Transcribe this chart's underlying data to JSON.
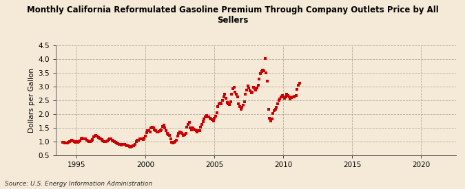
{
  "title": "Monthly California Reformulated Gasoline Premium Through Company Outlets Price by All\nSellers",
  "ylabel": "Dollars per Gallon",
  "source": "Source: U.S. Energy Information Administration",
  "background_color": "#f5ead8",
  "plot_bg_color": "#f5ead8",
  "marker_color": "#cc0000",
  "xlim": [
    1993.5,
    2022.5
  ],
  "ylim": [
    0.5,
    4.5
  ],
  "xticks": [
    1995,
    2000,
    2005,
    2010,
    2015,
    2020
  ],
  "yticks": [
    0.5,
    1.0,
    1.5,
    2.0,
    2.5,
    3.0,
    3.5,
    4.0,
    4.5
  ],
  "data": [
    [
      1994.0,
      0.97
    ],
    [
      1994.083,
      0.96
    ],
    [
      1994.167,
      0.94
    ],
    [
      1994.25,
      0.93
    ],
    [
      1994.333,
      0.95
    ],
    [
      1994.417,
      0.97
    ],
    [
      1994.5,
      1.0
    ],
    [
      1994.583,
      1.02
    ],
    [
      1994.667,
      1.03
    ],
    [
      1994.75,
      1.01
    ],
    [
      1994.833,
      0.99
    ],
    [
      1994.917,
      0.97
    ],
    [
      1995.0,
      0.98
    ],
    [
      1995.083,
      0.97
    ],
    [
      1995.167,
      0.99
    ],
    [
      1995.25,
      1.02
    ],
    [
      1995.333,
      1.08
    ],
    [
      1995.417,
      1.12
    ],
    [
      1995.5,
      1.1
    ],
    [
      1995.583,
      1.09
    ],
    [
      1995.667,
      1.08
    ],
    [
      1995.75,
      1.05
    ],
    [
      1995.833,
      1.02
    ],
    [
      1995.917,
      1.0
    ],
    [
      1996.0,
      1.0
    ],
    [
      1996.083,
      1.01
    ],
    [
      1996.167,
      1.06
    ],
    [
      1996.25,
      1.16
    ],
    [
      1996.333,
      1.19
    ],
    [
      1996.417,
      1.21
    ],
    [
      1996.5,
      1.18
    ],
    [
      1996.583,
      1.14
    ],
    [
      1996.667,
      1.11
    ],
    [
      1996.75,
      1.08
    ],
    [
      1996.833,
      1.06
    ],
    [
      1996.917,
      1.02
    ],
    [
      1997.0,
      0.99
    ],
    [
      1997.083,
      0.98
    ],
    [
      1997.167,
      0.98
    ],
    [
      1997.25,
      1.01
    ],
    [
      1997.333,
      1.06
    ],
    [
      1997.417,
      1.09
    ],
    [
      1997.5,
      1.08
    ],
    [
      1997.583,
      1.05
    ],
    [
      1997.667,
      1.02
    ],
    [
      1997.75,
      1.0
    ],
    [
      1997.833,
      0.97
    ],
    [
      1997.917,
      0.94
    ],
    [
      1998.0,
      0.92
    ],
    [
      1998.083,
      0.9
    ],
    [
      1998.167,
      0.88
    ],
    [
      1998.25,
      0.87
    ],
    [
      1998.333,
      0.9
    ],
    [
      1998.417,
      0.89
    ],
    [
      1998.5,
      0.88
    ],
    [
      1998.583,
      0.87
    ],
    [
      1998.667,
      0.85
    ],
    [
      1998.75,
      0.83
    ],
    [
      1998.833,
      0.82
    ],
    [
      1998.917,
      0.8
    ],
    [
      1999.0,
      0.82
    ],
    [
      1999.083,
      0.84
    ],
    [
      1999.167,
      0.85
    ],
    [
      1999.25,
      0.9
    ],
    [
      1999.333,
      0.98
    ],
    [
      1999.417,
      1.04
    ],
    [
      1999.5,
      1.05
    ],
    [
      1999.583,
      1.08
    ],
    [
      1999.667,
      1.1
    ],
    [
      1999.75,
      1.09
    ],
    [
      1999.833,
      1.06
    ],
    [
      1999.917,
      1.12
    ],
    [
      2000.0,
      1.18
    ],
    [
      2000.083,
      1.32
    ],
    [
      2000.167,
      1.4
    ],
    [
      2000.25,
      1.38
    ],
    [
      2000.333,
      1.35
    ],
    [
      2000.417,
      1.5
    ],
    [
      2000.5,
      1.52
    ],
    [
      2000.583,
      1.48
    ],
    [
      2000.667,
      1.42
    ],
    [
      2000.75,
      1.38
    ],
    [
      2000.833,
      1.35
    ],
    [
      2000.917,
      1.34
    ],
    [
      2001.0,
      1.36
    ],
    [
      2001.083,
      1.38
    ],
    [
      2001.167,
      1.42
    ],
    [
      2001.25,
      1.55
    ],
    [
      2001.333,
      1.58
    ],
    [
      2001.417,
      1.5
    ],
    [
      2001.5,
      1.4
    ],
    [
      2001.583,
      1.28
    ],
    [
      2001.667,
      1.25
    ],
    [
      2001.75,
      1.22
    ],
    [
      2001.833,
      1.1
    ],
    [
      2001.917,
      0.97
    ],
    [
      2002.0,
      0.94
    ],
    [
      2002.083,
      0.96
    ],
    [
      2002.167,
      0.98
    ],
    [
      2002.25,
      1.05
    ],
    [
      2002.333,
      1.18
    ],
    [
      2002.417,
      1.28
    ],
    [
      2002.5,
      1.35
    ],
    [
      2002.583,
      1.32
    ],
    [
      2002.667,
      1.28
    ],
    [
      2002.75,
      1.22
    ],
    [
      2002.833,
      1.25
    ],
    [
      2002.917,
      1.3
    ],
    [
      2003.0,
      1.52
    ],
    [
      2003.083,
      1.62
    ],
    [
      2003.167,
      1.68
    ],
    [
      2003.25,
      1.5
    ],
    [
      2003.333,
      1.42
    ],
    [
      2003.417,
      1.48
    ],
    [
      2003.5,
      1.45
    ],
    [
      2003.583,
      1.42
    ],
    [
      2003.667,
      1.38
    ],
    [
      2003.75,
      1.35
    ],
    [
      2003.833,
      1.38
    ],
    [
      2003.917,
      1.4
    ],
    [
      2004.0,
      1.52
    ],
    [
      2004.083,
      1.62
    ],
    [
      2004.167,
      1.72
    ],
    [
      2004.25,
      1.82
    ],
    [
      2004.333,
      1.88
    ],
    [
      2004.417,
      1.95
    ],
    [
      2004.5,
      1.9
    ],
    [
      2004.583,
      1.88
    ],
    [
      2004.667,
      1.85
    ],
    [
      2004.75,
      1.82
    ],
    [
      2004.833,
      1.8
    ],
    [
      2004.917,
      1.75
    ],
    [
      2005.0,
      1.85
    ],
    [
      2005.083,
      1.92
    ],
    [
      2005.167,
      2.05
    ],
    [
      2005.25,
      2.28
    ],
    [
      2005.333,
      2.38
    ],
    [
      2005.417,
      2.4
    ],
    [
      2005.5,
      2.38
    ],
    [
      2005.583,
      2.5
    ],
    [
      2005.667,
      2.62
    ],
    [
      2005.75,
      2.72
    ],
    [
      2005.833,
      2.58
    ],
    [
      2005.917,
      2.42
    ],
    [
      2006.0,
      2.38
    ],
    [
      2006.083,
      2.35
    ],
    [
      2006.167,
      2.45
    ],
    [
      2006.25,
      2.72
    ],
    [
      2006.333,
      2.92
    ],
    [
      2006.417,
      2.98
    ],
    [
      2006.5,
      2.8
    ],
    [
      2006.583,
      2.72
    ],
    [
      2006.667,
      2.62
    ],
    [
      2006.75,
      2.38
    ],
    [
      2006.833,
      2.28
    ],
    [
      2006.917,
      2.18
    ],
    [
      2007.0,
      2.25
    ],
    [
      2007.083,
      2.32
    ],
    [
      2007.167,
      2.45
    ],
    [
      2007.25,
      2.72
    ],
    [
      2007.333,
      2.88
    ],
    [
      2007.417,
      3.02
    ],
    [
      2007.5,
      2.95
    ],
    [
      2007.583,
      2.85
    ],
    [
      2007.667,
      2.78
    ],
    [
      2007.75,
      2.8
    ],
    [
      2007.833,
      2.98
    ],
    [
      2007.917,
      2.92
    ],
    [
      2008.0,
      2.88
    ],
    [
      2008.083,
      2.95
    ],
    [
      2008.167,
      3.05
    ],
    [
      2008.25,
      3.28
    ],
    [
      2008.333,
      3.48
    ],
    [
      2008.417,
      3.55
    ],
    [
      2008.5,
      3.6
    ],
    [
      2008.583,
      3.58
    ],
    [
      2008.667,
      4.02
    ],
    [
      2008.75,
      3.5
    ],
    [
      2008.833,
      3.2
    ],
    [
      2008.917,
      2.18
    ],
    [
      2009.0,
      1.85
    ],
    [
      2009.083,
      1.75
    ],
    [
      2009.167,
      1.82
    ],
    [
      2009.25,
      2.02
    ],
    [
      2009.333,
      2.12
    ],
    [
      2009.417,
      2.18
    ],
    [
      2009.5,
      2.25
    ],
    [
      2009.583,
      2.38
    ],
    [
      2009.667,
      2.5
    ],
    [
      2009.75,
      2.55
    ],
    [
      2009.833,
      2.62
    ],
    [
      2009.917,
      2.68
    ],
    [
      2010.0,
      2.62
    ],
    [
      2010.083,
      2.58
    ],
    [
      2010.167,
      2.62
    ],
    [
      2010.25,
      2.72
    ],
    [
      2010.333,
      2.68
    ],
    [
      2010.417,
      2.62
    ],
    [
      2010.5,
      2.55
    ],
    [
      2010.583,
      2.6
    ],
    [
      2010.667,
      2.62
    ],
    [
      2010.75,
      2.62
    ],
    [
      2010.833,
      2.65
    ],
    [
      2010.917,
      2.68
    ],
    [
      2011.0,
      2.9
    ],
    [
      2011.083,
      3.05
    ],
    [
      2011.167,
      3.12
    ]
  ]
}
